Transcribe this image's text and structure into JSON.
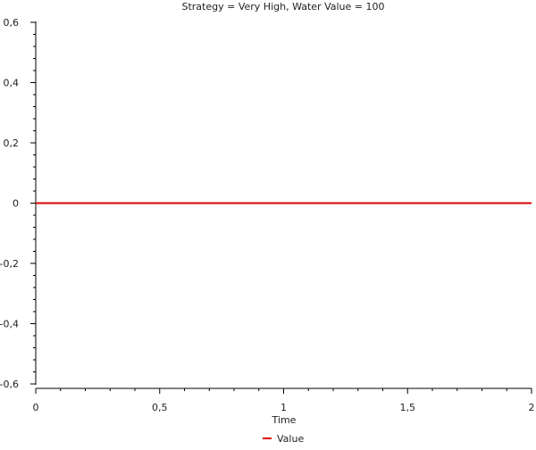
{
  "chart_data": {
    "type": "line",
    "title": "Strategy = Very High, Water Value = 100",
    "xlabel": "Time",
    "ylabel": "",
    "xlim": [
      0,
      2
    ],
    "ylim": [
      -0.6,
      0.6
    ],
    "x_ticks": [
      0,
      0.5,
      1,
      1.5,
      2
    ],
    "x_tick_labels": [
      "0",
      "0,5",
      "1",
      "1,5",
      "2"
    ],
    "y_ticks": [
      -0.6,
      -0.4,
      -0.2,
      0,
      0.2,
      0.4,
      0.6
    ],
    "y_tick_labels": [
      "-0,6",
      "-0,4",
      "-0,2",
      "0",
      "0,2",
      "0,4",
      "0,6"
    ],
    "grid": false,
    "legend_position": "bottom-center",
    "series": [
      {
        "name": "Value",
        "color": "#dd0000",
        "x": [
          0,
          2
        ],
        "y": [
          0,
          0
        ]
      }
    ]
  }
}
